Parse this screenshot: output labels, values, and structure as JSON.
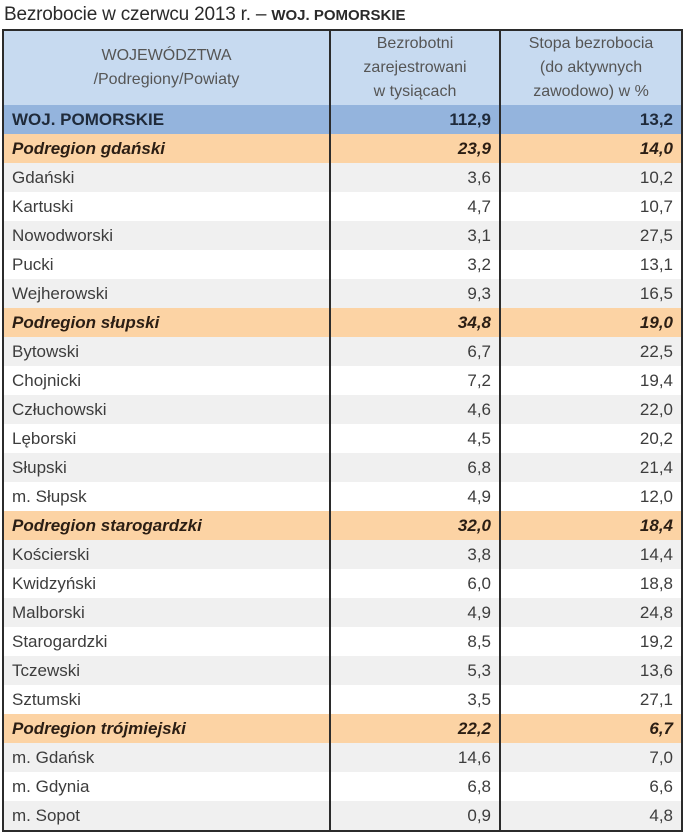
{
  "title": {
    "main": "Bezrobocie w czerwcu 2013 r. – ",
    "region": "WOJ. POMORSKIE"
  },
  "table": {
    "headers": {
      "col1": "WOJEWÓDZTWA /Podregiony/Powiaty",
      "col1_line1": "WOJEWÓDZTWA",
      "col1_line2": "/Podregiony/Powiaty",
      "col2_line1": "Bezrobotni",
      "col2_line2": "zarejestrowani",
      "col2_line3": "w tysiącach",
      "col3_line1": "Stopa bezrobocia",
      "col3_line2": "(do aktywnych",
      "col3_line3": "zawodowo) w %"
    },
    "rows": [
      {
        "type": "woj",
        "name": "WOJ. POMORSKIE",
        "unemployed": "112,9",
        "rate": "13,2"
      },
      {
        "type": "podregion",
        "name": "Podregion gdański",
        "unemployed": "23,9",
        "rate": "14,0"
      },
      {
        "type": "powiat",
        "name": "Gdański",
        "unemployed": "3,6",
        "rate": "10,2"
      },
      {
        "type": "powiat",
        "name": "Kartuski",
        "unemployed": "4,7",
        "rate": "10,7"
      },
      {
        "type": "powiat",
        "name": "Nowodworski",
        "unemployed": "3,1",
        "rate": "27,5"
      },
      {
        "type": "powiat",
        "name": "Pucki",
        "unemployed": "3,2",
        "rate": "13,1"
      },
      {
        "type": "powiat",
        "name": "Wejherowski",
        "unemployed": "9,3",
        "rate": "16,5"
      },
      {
        "type": "podregion",
        "name": "Podregion słupski",
        "unemployed": "34,8",
        "rate": "19,0"
      },
      {
        "type": "powiat",
        "name": "Bytowski",
        "unemployed": "6,7",
        "rate": "22,5"
      },
      {
        "type": "powiat",
        "name": "Chojnicki",
        "unemployed": "7,2",
        "rate": "19,4"
      },
      {
        "type": "powiat",
        "name": "Człuchowski",
        "unemployed": "4,6",
        "rate": "22,0"
      },
      {
        "type": "powiat",
        "name": "Lęborski",
        "unemployed": "4,5",
        "rate": "20,2"
      },
      {
        "type": "powiat",
        "name": "Słupski",
        "unemployed": "6,8",
        "rate": "21,4"
      },
      {
        "type": "powiat",
        "name": "m. Słupsk",
        "unemployed": "4,9",
        "rate": "12,0"
      },
      {
        "type": "podregion",
        "name": "Podregion starogardzki",
        "unemployed": "32,0",
        "rate": "18,4"
      },
      {
        "type": "powiat",
        "name": "Kościerski",
        "unemployed": "3,8",
        "rate": "14,4"
      },
      {
        "type": "powiat",
        "name": "Kwidzyński",
        "unemployed": "6,0",
        "rate": "18,8"
      },
      {
        "type": "powiat",
        "name": "Malborski",
        "unemployed": "4,9",
        "rate": "24,8"
      },
      {
        "type": "powiat",
        "name": "Starogardzki",
        "unemployed": "8,5",
        "rate": "19,2"
      },
      {
        "type": "powiat",
        "name": "Tczewski",
        "unemployed": "5,3",
        "rate": "13,6"
      },
      {
        "type": "powiat",
        "name": "Sztumski",
        "unemployed": "3,5",
        "rate": "27,1"
      },
      {
        "type": "podregion",
        "name": "Podregion trójmiejski",
        "unemployed": "22,2",
        "rate": "6,7"
      },
      {
        "type": "powiat",
        "name": "m. Gdańsk",
        "unemployed": "14,6",
        "rate": "7,0"
      },
      {
        "type": "powiat",
        "name": "m. Gdynia",
        "unemployed": "6,8",
        "rate": "6,6"
      },
      {
        "type": "powiat",
        "name": "m. Sopot",
        "unemployed": "0,9",
        "rate": "4,8"
      }
    ]
  },
  "colors": {
    "header_bg": "#c7daf0",
    "woj_bg": "#94b4dd",
    "podregion_bg": "#fcd3a4",
    "stripe_bg": "#f0f0f0",
    "border": "#2b2b2b"
  }
}
